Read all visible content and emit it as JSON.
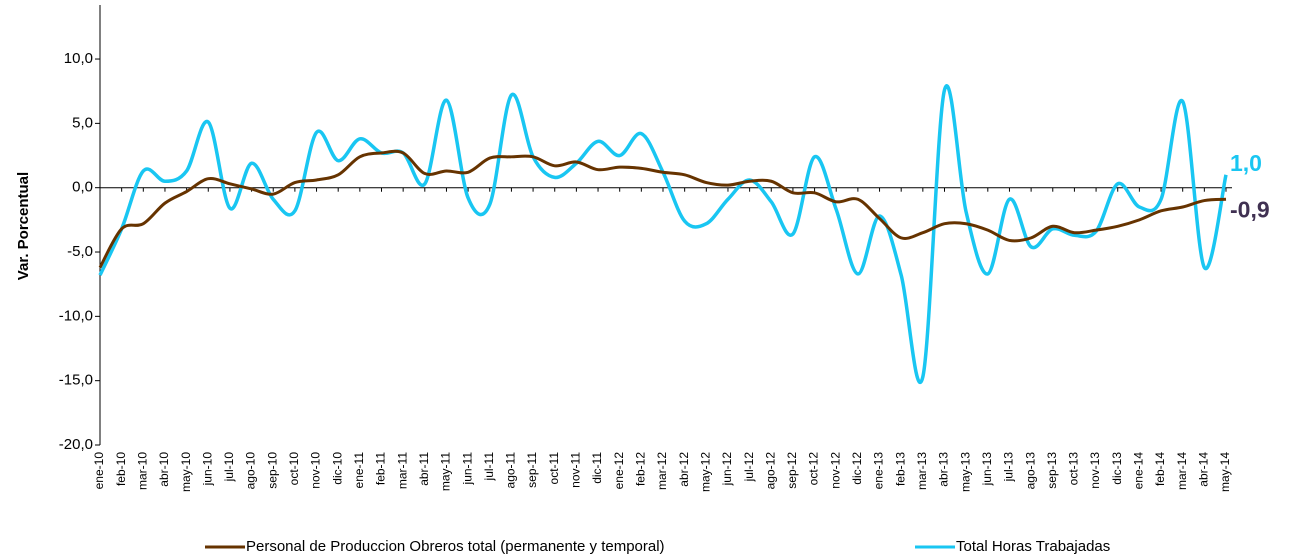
{
  "chart_data": {
    "type": "line",
    "y_label": "Var. Porcentual",
    "categories": [
      "ene-10",
      "feb-10",
      "mar-10",
      "abr-10",
      "may-10",
      "jun-10",
      "jul-10",
      "ago-10",
      "sep-10",
      "oct-10",
      "nov-10",
      "dic-10",
      "ene-11",
      "feb-11",
      "mar-11",
      "abr-11",
      "may-11",
      "jun-11",
      "jul-11",
      "ago-11",
      "sep-11",
      "oct-11",
      "nov-11",
      "dic-11",
      "ene-12",
      "feb-12",
      "mar-12",
      "abr-12",
      "may-12",
      "jun-12",
      "jul-12",
      "ago-12",
      "sep-12",
      "oct-12",
      "nov-12",
      "dic-12",
      "ene-13",
      "feb-13",
      "mar-13",
      "abr-13",
      "may-13",
      "jun-13",
      "jul-13",
      "ago-13",
      "sep-13",
      "oct-13",
      "nov-13",
      "dic-13",
      "ene-14",
      "feb-14",
      "mar-14",
      "abr-14",
      "may-14"
    ],
    "series": [
      {
        "name": "Personal de Produccion Obreros total (permanente y temporal)",
        "color": "#663300",
        "label_color": "#403152",
        "values": [
          -6.2,
          -3.2,
          -2.8,
          -1.2,
          -0.3,
          0.7,
          0.3,
          -0.1,
          -0.5,
          0.4,
          0.6,
          1.0,
          2.4,
          2.7,
          2.7,
          1.1,
          1.3,
          1.2,
          2.3,
          2.4,
          2.4,
          1.7,
          2.0,
          1.4,
          1.6,
          1.5,
          1.2,
          1.0,
          0.4,
          0.2,
          0.5,
          0.5,
          -0.4,
          -0.4,
          -1.1,
          -0.9,
          -2.4,
          -3.9,
          -3.5,
          -2.8,
          -2.8,
          -3.3,
          -4.1,
          -3.9,
          -3.0,
          -3.5,
          -3.3,
          -3.0,
          -2.5,
          -1.8,
          -1.5,
          -1.0,
          -0.9
        ],
        "value_labels": [
          null,
          null,
          null,
          null,
          null,
          null,
          null,
          null,
          null,
          null,
          null,
          null,
          null,
          null,
          null,
          null,
          null,
          null,
          null,
          null,
          null,
          null,
          null,
          null,
          null,
          null,
          null,
          null,
          null,
          null,
          null,
          null,
          null,
          null,
          null,
          null,
          null,
          null,
          null,
          null,
          null,
          null,
          null,
          null,
          null,
          null,
          null,
          null,
          null,
          null,
          null,
          null,
          "-0,9"
        ]
      },
      {
        "name": "Total Horas Trabajadas",
        "color": "#19c6f2",
        "values": [
          -6.8,
          -3.2,
          1.3,
          0.5,
          1.3,
          5.1,
          -1.6,
          1.9,
          -0.9,
          -1.8,
          4.3,
          2.1,
          3.8,
          2.7,
          2.7,
          0.3,
          6.8,
          -0.8,
          -1.3,
          7.2,
          2.4,
          0.8,
          1.9,
          3.6,
          2.5,
          4.2,
          1.2,
          -2.6,
          -2.8,
          -0.9,
          0.6,
          -1.1,
          -3.6,
          2.4,
          -1.7,
          -6.7,
          -2.2,
          -6.8,
          -14.7,
          7.6,
          -1.9,
          -6.7,
          -0.9,
          -4.6,
          -3.2,
          -3.7,
          -3.4,
          0.3,
          -1.5,
          -0.9,
          6.7,
          -6.2,
          1.0
        ],
        "value_labels": [
          null,
          null,
          null,
          null,
          null,
          null,
          null,
          null,
          null,
          null,
          null,
          null,
          null,
          null,
          null,
          null,
          null,
          null,
          null,
          null,
          null,
          null,
          null,
          null,
          null,
          null,
          null,
          null,
          null,
          null,
          null,
          null,
          null,
          null,
          null,
          null,
          null,
          null,
          null,
          null,
          null,
          null,
          null,
          null,
          null,
          null,
          null,
          null,
          null,
          null,
          null,
          null,
          "1,0"
        ]
      }
    ],
    "ylim": [
      -20,
      14.2
    ],
    "yticks": [
      {
        "value": -20,
        "label": "-20,0"
      },
      {
        "value": -15,
        "label": "-15,0"
      },
      {
        "value": -10,
        "label": "-10,0"
      },
      {
        "value": -5,
        "label": "-5,0"
      },
      {
        "value": 0,
        "label": "0,0"
      },
      {
        "value": 5,
        "label": "5,0"
      },
      {
        "value": 10,
        "label": "10,0"
      }
    ],
    "grid": false,
    "legend": "bottom"
  }
}
